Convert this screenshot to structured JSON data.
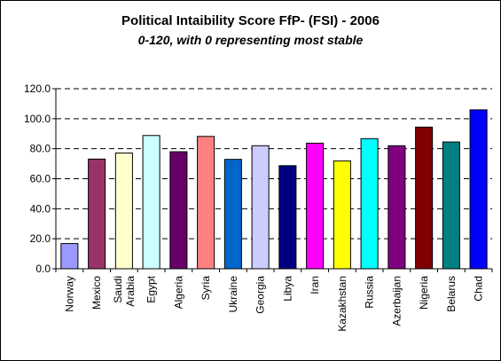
{
  "chart_data": {
    "type": "bar",
    "title": "Political Intaibility Score FfP- (FSI) - 2006",
    "subtitle": "0-120, with 0 representing most stable",
    "xlabel": "",
    "ylabel": "",
    "ylim": [
      0,
      120
    ],
    "yticks": [
      "0.0",
      "20.0",
      "40.0",
      "60.0",
      "80.0",
      "100.0",
      "120.0"
    ],
    "grid": true,
    "legend": "none",
    "categories": [
      "Norway",
      "Mexico",
      "Saudi\nArabia",
      "Egypt",
      "Algeria",
      "Syria",
      "Ukraine",
      "Georgia",
      "Libya",
      "Iran",
      "Kazakhstan",
      "Russia",
      "Azerbaijan",
      "Nigeria",
      "Belarus",
      "Chad"
    ],
    "values": [
      16.8,
      73.1,
      77.1,
      88.8,
      78.0,
      88.2,
      72.9,
      82.0,
      68.7,
      83.7,
      71.9,
      86.7,
      82.0,
      94.4,
      84.5,
      105.9
    ],
    "colors": [
      "#9999ff",
      "#993366",
      "#ffffcc",
      "#ccffff",
      "#660066",
      "#ff8080",
      "#0066cc",
      "#ccccff",
      "#000080",
      "#ff00ff",
      "#ffff00",
      "#00ffff",
      "#800080",
      "#800000",
      "#008080",
      "#0000ff"
    ]
  }
}
